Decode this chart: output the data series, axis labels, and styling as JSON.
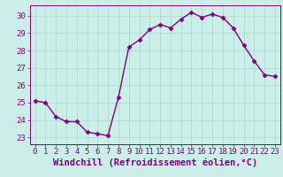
{
  "x": [
    0,
    1,
    2,
    3,
    4,
    5,
    6,
    7,
    8,
    9,
    10,
    11,
    12,
    13,
    14,
    15,
    16,
    17,
    18,
    19,
    20,
    21,
    22,
    23
  ],
  "y": [
    25.1,
    25.0,
    24.2,
    23.9,
    23.9,
    23.3,
    23.2,
    23.1,
    25.3,
    28.2,
    28.6,
    29.2,
    29.5,
    29.3,
    29.8,
    30.2,
    29.9,
    30.1,
    29.9,
    29.3,
    28.3,
    27.4,
    26.6,
    26.5
  ],
  "line_color": "#800080",
  "marker": "D",
  "marker_size": 2.5,
  "bg_color": "#cceee8",
  "grid_color": "#aaddcc",
  "xlabel": "Windchill (Refroidissement éolien,°C)",
  "ylim": [
    22.6,
    30.6
  ],
  "xlim": [
    -0.5,
    23.5
  ],
  "yticks": [
    23,
    24,
    25,
    26,
    27,
    28,
    29,
    30
  ],
  "xticks": [
    0,
    1,
    2,
    3,
    4,
    5,
    6,
    7,
    8,
    9,
    10,
    11,
    12,
    13,
    14,
    15,
    16,
    17,
    18,
    19,
    20,
    21,
    22,
    23
  ],
  "tick_color": "#800080",
  "label_color": "#800080",
  "axis_color": "#800080",
  "font_size": 6.5,
  "xlabel_fontsize": 7.5
}
